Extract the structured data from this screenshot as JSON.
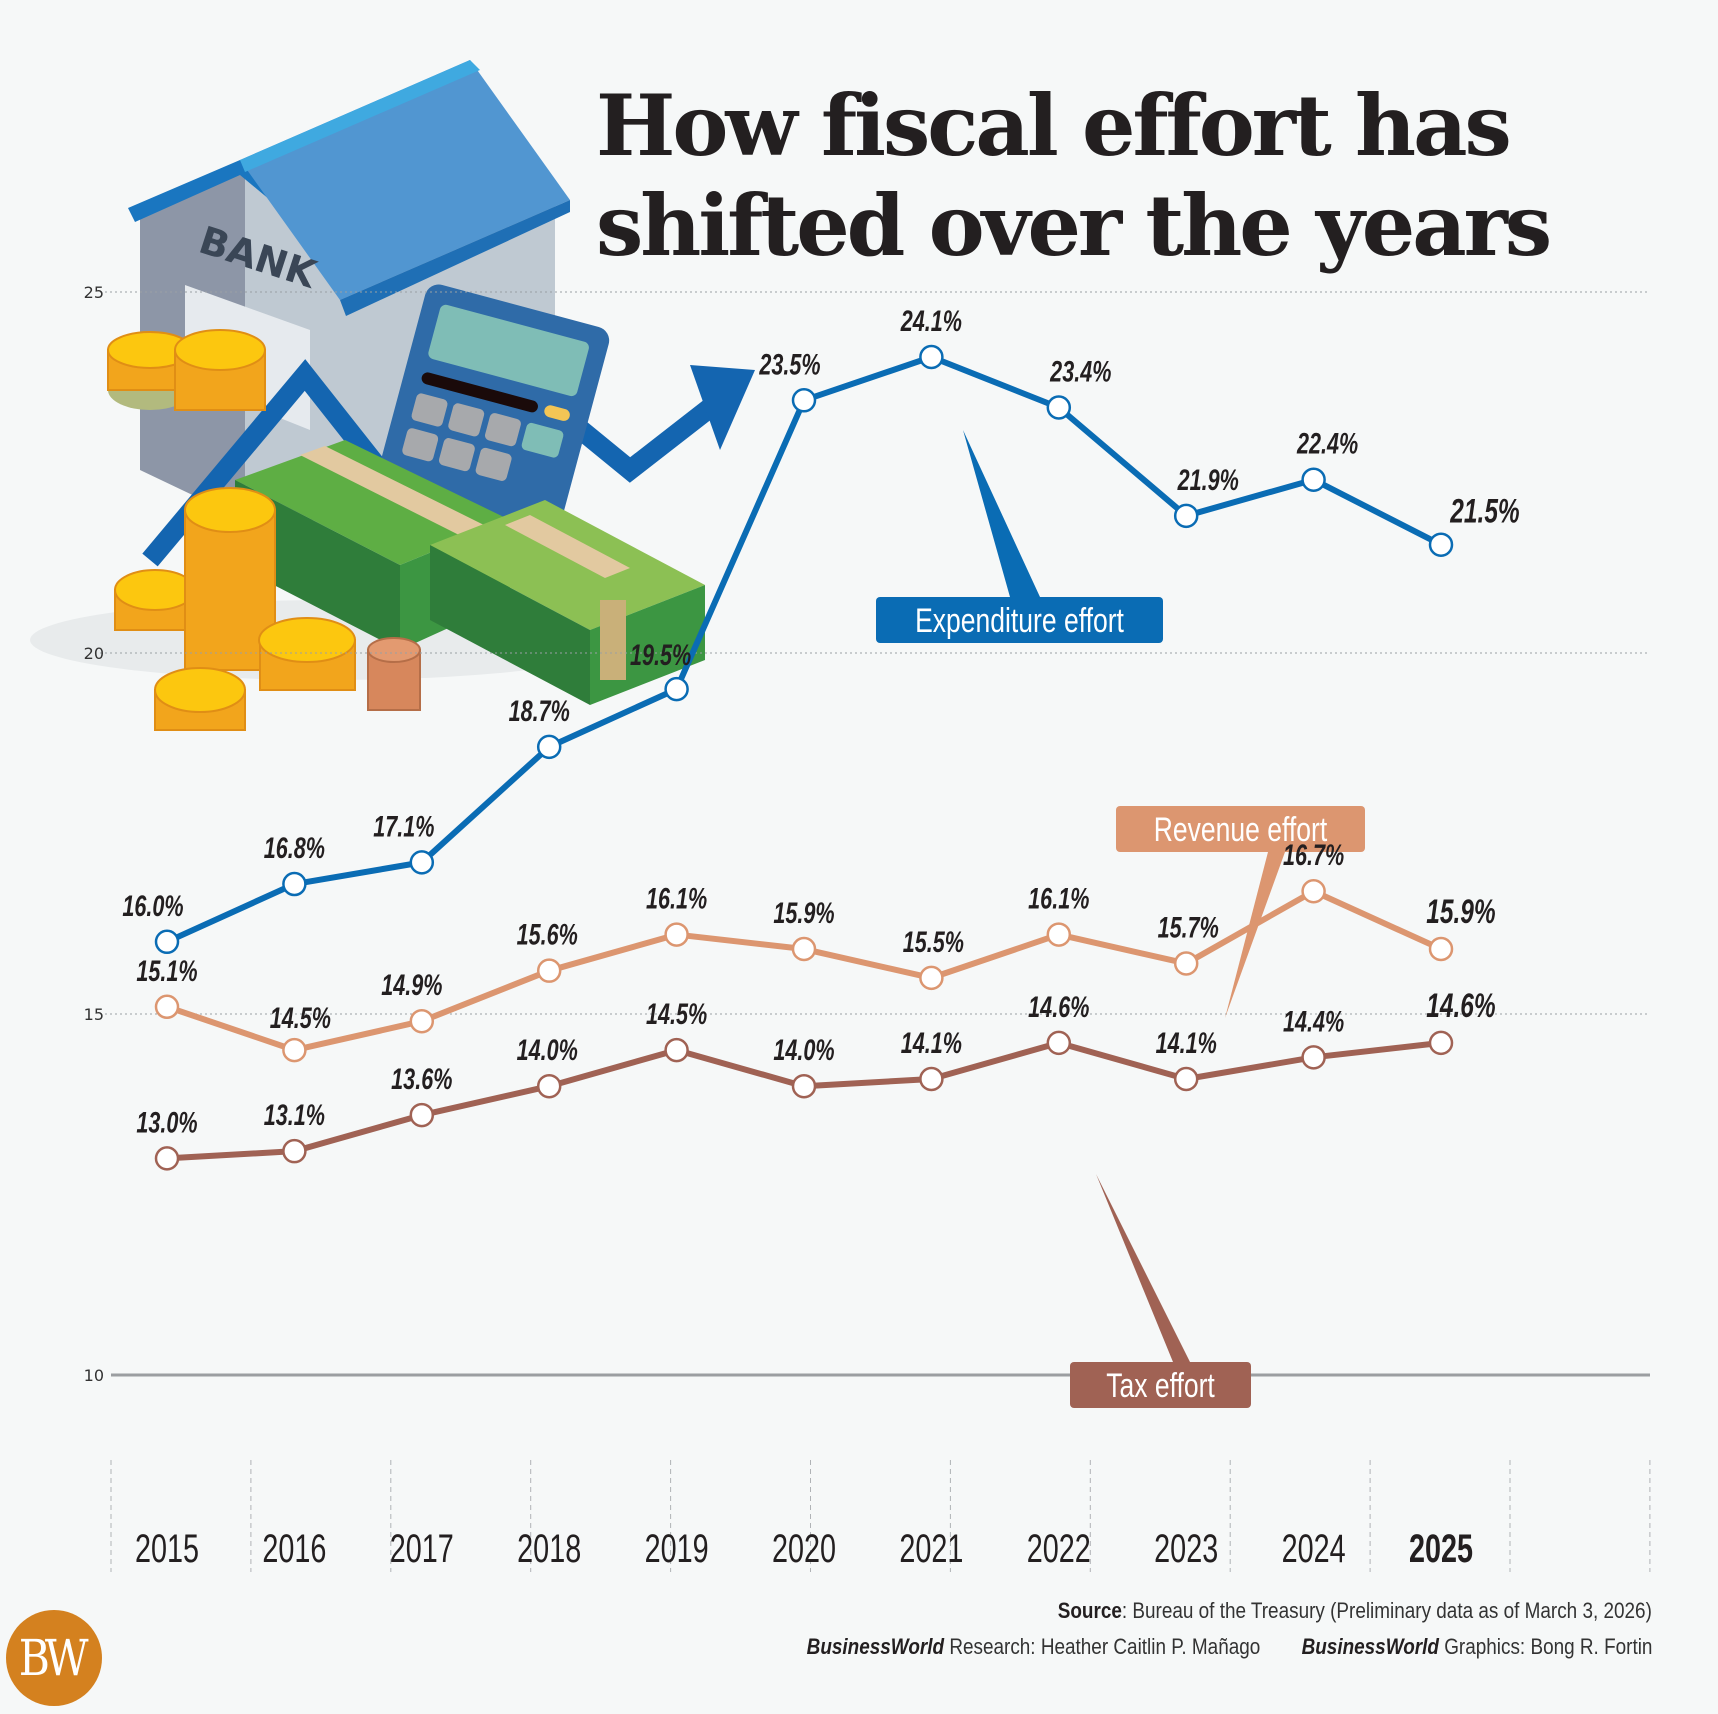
{
  "chart_data": {
    "type": "line",
    "title": "How fiscal effort has shifted over the years",
    "title_lines": [
      "How fiscal effort has",
      "shifted over the years"
    ],
    "xlabel": "",
    "ylabel": "",
    "x": [
      "2015",
      "2016",
      "2017",
      "2018",
      "2019",
      "2020",
      "2021",
      "2022",
      "2023",
      "2024",
      "2025"
    ],
    "ylim": [
      10,
      25
    ],
    "yticks": [
      10,
      15,
      20,
      25
    ],
    "grid": true,
    "series": [
      {
        "name": "Expenditure effort",
        "color": "#0a6cb4",
        "values": [
          16.0,
          16.8,
          17.1,
          18.7,
          19.5,
          23.5,
          24.1,
          23.4,
          21.9,
          22.4,
          21.5
        ],
        "labels": [
          "16.0%",
          "16.8%",
          "17.1%",
          "18.7%",
          "19.5%",
          "23.5%",
          "24.1%",
          "23.4%",
          "21.9%",
          "22.4%",
          "21.5%"
        ]
      },
      {
        "name": "Revenue effort",
        "color": "#dc9670",
        "values": [
          15.1,
          14.5,
          14.9,
          15.6,
          16.1,
          15.9,
          15.5,
          16.1,
          15.7,
          16.7,
          15.9
        ],
        "labels": [
          "15.1%",
          "14.5%",
          "14.9%",
          "15.6%",
          "16.1%",
          "15.9%",
          "15.5%",
          "16.1%",
          "15.7%",
          "16.7%",
          "15.9%"
        ]
      },
      {
        "name": "Tax effort",
        "color": "#a06254",
        "values": [
          13.0,
          13.1,
          13.6,
          14.0,
          14.5,
          14.0,
          14.1,
          14.6,
          14.1,
          14.4,
          14.6
        ],
        "labels": [
          "13.0%",
          "13.1%",
          "13.6%",
          "14.0%",
          "14.5%",
          "14.0%",
          "14.1%",
          "14.6%",
          "14.1%",
          "14.4%",
          "14.6%"
        ]
      }
    ],
    "legend": "callout-labels"
  },
  "illustration": {
    "bank_sign": "BANK",
    "description": "bank building, calculator, cash stacks, coins, rising arrow"
  },
  "footer": {
    "source_label": "Source",
    "source_text": ": Bureau of the Treasury (Preliminary data as of March 3, 2026)",
    "research_brand": "BusinessWorld",
    "research_label": " Research",
    "research_name": ": Heather Caitlin P. Mañago",
    "graphics_brand": "BusinessWorld",
    "graphics_label": " Graphics",
    "graphics_name": ": Bong R. Fortin",
    "logo_text": "BW",
    "logo_color": "#d4811f"
  }
}
